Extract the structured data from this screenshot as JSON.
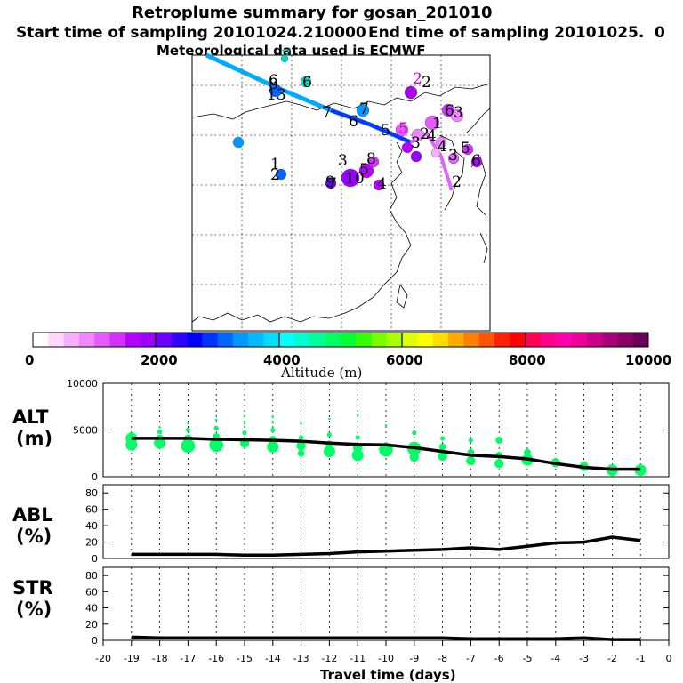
{
  "header": {
    "title": "Retroplume summary for gosan_201010",
    "start": "Start time of sampling 20101024.210000",
    "end": "End time of sampling 20101025.",
    "end_suffix": "0",
    "met": "Meteorological data used is ECMWF"
  },
  "colorbar": {
    "label": "Altitude (m)",
    "ticks": [
      "0",
      "2000",
      "4000",
      "6000",
      "8000",
      "10000"
    ],
    "colors": [
      "#ffffff",
      "#ffd8ff",
      "#f6b0ff",
      "#ef88ff",
      "#e45cff",
      "#d430ff",
      "#b800ff",
      "#9a00ff",
      "#6e00ff",
      "#3300ff",
      "#0000ff",
      "#0033ff",
      "#0066ff",
      "#0099ff",
      "#00bbff",
      "#00ddff",
      "#00ffff",
      "#00ffcc",
      "#00ff99",
      "#00ff66",
      "#00ff33",
      "#33ff00",
      "#77ff00",
      "#aaff00",
      "#ddff00",
      "#ffff00",
      "#ffdd00",
      "#ffaa00",
      "#ff8000",
      "#ff5500",
      "#ff2200",
      "#ff0000",
      "#ff0055",
      "#ff0088",
      "#ff00aa",
      "#ee0099",
      "#cc0088",
      "#aa0077",
      "#880066",
      "#660055"
    ]
  },
  "map_labels": [
    "7",
    "8",
    "13",
    "6",
    "2",
    "8",
    "7",
    "6",
    "5",
    "7",
    "5",
    "2",
    "3",
    "1",
    "4",
    "6",
    "3",
    "4",
    "3",
    "2",
    "5",
    "6",
    "4",
    "1",
    "2",
    "6",
    "10",
    "8",
    "5",
    "7",
    "4",
    "9",
    "3",
    "2"
  ],
  "chart_data": [
    {
      "type": "line",
      "panel": "ALT",
      "title": "ALT",
      "ylabel": "(m)",
      "ylim": [
        0,
        10000
      ],
      "yticks": [
        "0",
        "5000",
        "10000"
      ],
      "x": [
        -19,
        -18,
        -17,
        -16,
        -15,
        -14,
        -13,
        -12,
        -11,
        -10,
        -9,
        -8,
        -7,
        -6,
        -5,
        -4,
        -3,
        -2,
        -1
      ],
      "series": [
        {
          "name": "mean altitude",
          "values": [
            4100,
            4100,
            4100,
            4000,
            3950,
            3900,
            3800,
            3600,
            3450,
            3400,
            3100,
            2700,
            2300,
            2150,
            1900,
            1400,
            1000,
            800,
            800
          ]
        }
      ],
      "scatter": [
        [
          -19,
          3400,
          5
        ],
        [
          -19,
          4100,
          5
        ],
        [
          -19,
          4400,
          3
        ],
        [
          -18,
          3600,
          5
        ],
        [
          -18,
          4000,
          4
        ],
        [
          -18,
          4800,
          2
        ],
        [
          -18,
          5300,
          1
        ],
        [
          -17,
          3300,
          6
        ],
        [
          -17,
          4000,
          4
        ],
        [
          -17,
          5000,
          2
        ],
        [
          -17,
          5700,
          1
        ],
        [
          -16,
          3400,
          6
        ],
        [
          -16,
          4300,
          3
        ],
        [
          -16,
          5200,
          2
        ],
        [
          -16,
          6100,
          1
        ],
        [
          -15,
          3600,
          4
        ],
        [
          -15,
          4700,
          2
        ],
        [
          -15,
          5700,
          1
        ],
        [
          -15,
          6500,
          1
        ],
        [
          -14,
          3200,
          5
        ],
        [
          -14,
          4000,
          3
        ],
        [
          -14,
          5000,
          2
        ],
        [
          -14,
          5800,
          1
        ],
        [
          -14,
          6400,
          1
        ],
        [
          -13,
          2500,
          3
        ],
        [
          -13,
          3300,
          4
        ],
        [
          -13,
          4200,
          2
        ],
        [
          -13,
          5700,
          1
        ],
        [
          -12,
          2700,
          5
        ],
        [
          -12,
          3500,
          3
        ],
        [
          -12,
          4500,
          2
        ],
        [
          -12,
          6200,
          1
        ],
        [
          -11,
          2300,
          5
        ],
        [
          -11,
          3100,
          4
        ],
        [
          -11,
          4200,
          2
        ],
        [
          -11,
          6600,
          1
        ],
        [
          -10,
          2900,
          6
        ],
        [
          -10,
          3300,
          3
        ],
        [
          -10,
          5500,
          1
        ],
        [
          -9,
          2100,
          4
        ],
        [
          -9,
          3000,
          6
        ],
        [
          -9,
          4700,
          2
        ],
        [
          -8,
          2200,
          4
        ],
        [
          -8,
          3200,
          3
        ],
        [
          -8,
          4100,
          2
        ],
        [
          -7,
          1700,
          4
        ],
        [
          -7,
          2600,
          3
        ],
        [
          -7,
          3900,
          2
        ],
        [
          -6,
          1400,
          4
        ],
        [
          -6,
          2300,
          3
        ],
        [
          -6,
          3900,
          3
        ],
        [
          -5,
          1800,
          5
        ],
        [
          -5,
          2600,
          3
        ],
        [
          -4,
          1500,
          4
        ],
        [
          -3,
          1100,
          4
        ],
        [
          -2,
          700,
          5
        ],
        [
          -1,
          700,
          5
        ]
      ],
      "marker_color": "#00ff66"
    },
    {
      "type": "line",
      "panel": "ABL",
      "title": "ABL",
      "ylabel": "(%)",
      "ylim": [
        0,
        90
      ],
      "yticks": [
        "0",
        "20",
        "40",
        "60",
        "80"
      ],
      "x": [
        -19,
        -18,
        -17,
        -16,
        -15,
        -14,
        -13,
        -12,
        -11,
        -10,
        -9,
        -8,
        -7,
        -6,
        -5,
        -4,
        -3,
        -2,
        -1
      ],
      "series": [
        {
          "name": "ABL fraction",
          "values": [
            5,
            5,
            5,
            5,
            4,
            4,
            5,
            6,
            8,
            9,
            10,
            11,
            13,
            11,
            15,
            19,
            20,
            26,
            22
          ]
        }
      ]
    },
    {
      "type": "line",
      "panel": "STR",
      "title": "STR",
      "ylabel": "(%)",
      "ylim": [
        0,
        90
      ],
      "yticks": [
        "0",
        "20",
        "40",
        "60",
        "80"
      ],
      "x": [
        -19,
        -18,
        -17,
        -16,
        -15,
        -14,
        -13,
        -12,
        -11,
        -10,
        -9,
        -8,
        -7,
        -6,
        -5,
        -4,
        -3,
        -2,
        -1
      ],
      "series": [
        {
          "name": "STR fraction",
          "values": [
            4,
            3,
            3,
            3,
            3,
            3,
            3,
            3,
            3,
            3,
            3,
            3,
            2,
            2,
            2,
            2,
            3,
            1,
            1
          ]
        }
      ],
      "xlabel": "Travel time (days)",
      "xlim": [
        -20,
        0
      ],
      "xticks": [
        "-20",
        "-19",
        "-18",
        "-17",
        "-16",
        "-15",
        "-14",
        "-13",
        "-12",
        "-11",
        "-10",
        "-9",
        "-8",
        "-7",
        "-6",
        "-5",
        "-4",
        "-3",
        "-2",
        "-1",
        "0"
      ]
    }
  ]
}
